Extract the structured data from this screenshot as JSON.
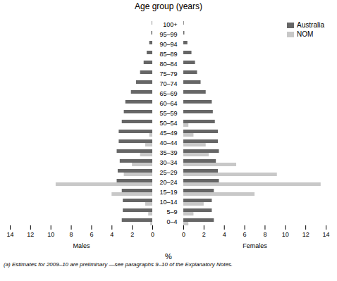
{
  "chart_data": [
    {
      "type": "bar",
      "orientation": "horizontal",
      "title": "Age group (years)",
      "xlabel": "Males",
      "annotations": [
        "%",
        "(a) Estimates for 2009–10 are preliminary —see paragraphs 9–10 of the Explanatory Notes."
      ],
      "categories": [
        "0–4",
        "5–9",
        "10–14",
        "15–19",
        "20–24",
        "25–29",
        "30–34",
        "35–39",
        "40–44",
        "45–49",
        "50–54",
        "55–59",
        "60–64",
        "65–69",
        "70–74",
        "75–79",
        "80–84",
        "85–89",
        "90–94",
        "95–99",
        "100+"
      ],
      "series": [
        {
          "name": "Australia",
          "color": "#666666",
          "values": [
            3.0,
            2.9,
            2.9,
            3.0,
            3.5,
            3.4,
            3.2,
            3.5,
            3.3,
            3.3,
            3.0,
            2.8,
            2.65,
            2.1,
            1.6,
            1.2,
            0.85,
            0.55,
            0.3,
            0.1,
            0.05
          ]
        },
        {
          "name": "NOM",
          "color": "#c8c8c8",
          "values": [
            0.2,
            0.4,
            0.7,
            4.0,
            9.5,
            2.8,
            2.0,
            1.2,
            0.7,
            0.3,
            0.0,
            0.0,
            0.0,
            0.0,
            0.0,
            0.0,
            0.0,
            0.0,
            0.0,
            0.0,
            0.0
          ]
        }
      ],
      "xlim": [
        14,
        0
      ],
      "xticks": [
        0,
        2,
        4,
        6,
        8,
        10,
        12,
        14
      ],
      "grid": false,
      "tick_labels": "x"
    },
    {
      "type": "bar",
      "orientation": "horizontal",
      "xlabel": "Females",
      "categories": [
        "0–4",
        "5–9",
        "10–14",
        "15–19",
        "20–24",
        "25–29",
        "30–34",
        "35–39",
        "40–44",
        "45–49",
        "50–54",
        "55–59",
        "60–64",
        "65–69",
        "70–74",
        "75–79",
        "80–84",
        "85–89",
        "90–94",
        "95–99",
        "100+"
      ],
      "series": [
        {
          "name": "Australia",
          "color": "#666666",
          "values": [
            3.0,
            2.8,
            2.8,
            3.0,
            3.5,
            3.4,
            3.2,
            3.5,
            3.4,
            3.4,
            3.1,
            2.9,
            2.8,
            2.2,
            1.7,
            1.35,
            1.15,
            0.8,
            0.4,
            0.1,
            0.05
          ]
        },
        {
          "name": "NOM",
          "color": "#c8c8c8",
          "values": [
            0.5,
            1.0,
            2.0,
            7.0,
            13.5,
            9.2,
            5.2,
            2.5,
            2.2,
            1.0,
            0.5,
            0.0,
            0.0,
            0.0,
            0.0,
            0.0,
            0.0,
            0.0,
            0.0,
            0.0,
            0.0
          ]
        }
      ],
      "xlim": [
        0,
        14
      ],
      "xticks": [
        0,
        2,
        4,
        6,
        8,
        10,
        12,
        14
      ],
      "grid": false,
      "legend": "upper right"
    }
  ]
}
